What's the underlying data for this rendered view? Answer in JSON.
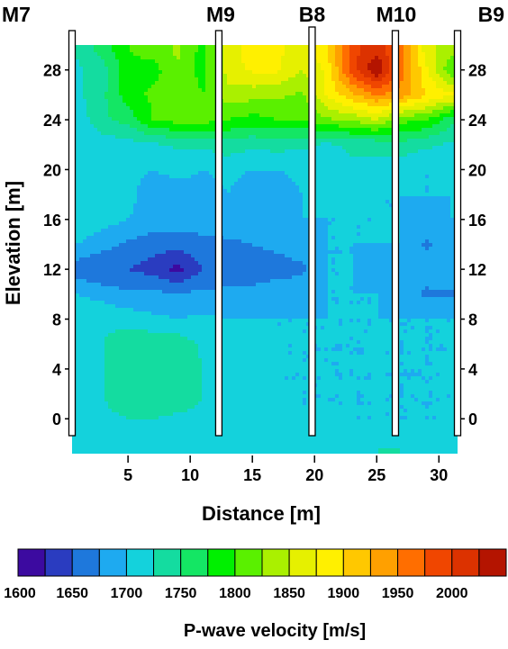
{
  "chart_data": {
    "type": "heatmap",
    "xlabel": "Distance [m]",
    "ylabel": "Elevation [m]",
    "xlim": [
      0.5,
      31.5
    ],
    "ylim": [
      -2.8,
      30
    ],
    "x_ticks": [
      5,
      10,
      15,
      20,
      25,
      30
    ],
    "y_ticks": [
      0,
      4,
      8,
      12,
      16,
      20,
      24,
      28
    ],
    "boreholes": [
      {
        "name": "M7",
        "x": 0.5
      },
      {
        "name": "M9",
        "x": 12.3
      },
      {
        "name": "B8",
        "x": 19.8
      },
      {
        "name": "M10",
        "x": 26.5
      },
      {
        "name": "B9",
        "x": 31.5
      }
    ],
    "colorbar": {
      "label": "P-wave velocity [m/s]",
      "tick_labels": [
        "1600",
        "1650",
        "1700",
        "1750",
        "1800",
        "1850",
        "1900",
        "1950",
        "2000"
      ],
      "levels": [
        1600,
        1625,
        1650,
        1675,
        1700,
        1725,
        1750,
        1775,
        1800,
        1825,
        1850,
        1875,
        1900,
        1925,
        1950,
        1975,
        2000,
        2025,
        2050
      ],
      "colors": [
        "#3c0aa0",
        "#2a3cc0",
        "#1e78dc",
        "#1eaaf0",
        "#14d2dc",
        "#14dca0",
        "#14e664",
        "#00f000",
        "#5af000",
        "#aaf000",
        "#e6f000",
        "#fff000",
        "#ffc800",
        "#ffa000",
        "#ff6e00",
        "#f04600",
        "#dc3200",
        "#b41400"
      ]
    },
    "x": [
      1,
      3,
      5,
      7,
      9,
      11,
      13,
      15,
      17,
      19,
      21,
      23,
      25,
      27,
      29,
      31
    ],
    "y": [
      29.5,
      28,
      26,
      24,
      22,
      20,
      18,
      16,
      14,
      12,
      10,
      8,
      6,
      4,
      2,
      0,
      -2.5
    ],
    "values": [
      [
        1730,
        1760,
        1800,
        1810,
        1830,
        1790,
        1860,
        1890,
        1880,
        1860,
        1900,
        1990,
        2020,
        1960,
        1860,
        1830
      ],
      [
        1720,
        1740,
        1790,
        1790,
        1820,
        1790,
        1860,
        1880,
        1880,
        1850,
        1880,
        1990,
        2050,
        1960,
        1880,
        1800
      ],
      [
        1720,
        1745,
        1790,
        1805,
        1825,
        1800,
        1840,
        1835,
        1830,
        1820,
        1880,
        1920,
        1950,
        1940,
        1900,
        1880
      ],
      [
        1710,
        1745,
        1760,
        1800,
        1810,
        1810,
        1800,
        1790,
        1800,
        1800,
        1820,
        1830,
        1850,
        1810,
        1800,
        1760
      ],
      [
        1700,
        1710,
        1715,
        1720,
        1730,
        1730,
        1740,
        1730,
        1735,
        1730,
        1720,
        1730,
        1730,
        1740,
        1730,
        1720
      ],
      [
        1720,
        1720,
        1710,
        1700,
        1710,
        1700,
        1705,
        1700,
        1700,
        1705,
        1710,
        1720,
        1720,
        1710,
        1700,
        1700
      ],
      [
        1720,
        1725,
        1710,
        1680,
        1685,
        1690,
        1700,
        1690,
        1690,
        1700,
        1705,
        1710,
        1700,
        1700,
        1700,
        1700
      ],
      [
        1715,
        1710,
        1700,
        1690,
        1690,
        1690,
        1690,
        1695,
        1700,
        1700,
        1700,
        1700,
        1700,
        1700,
        1690,
        1700
      ],
      [
        1700,
        1685,
        1670,
        1660,
        1660,
        1665,
        1670,
        1675,
        1680,
        1690,
        1700,
        1700,
        1700,
        1700,
        1670,
        1690
      ],
      [
        1660,
        1650,
        1650,
        1640,
        1615,
        1650,
        1665,
        1665,
        1665,
        1670,
        1700,
        1700,
        1690,
        1690,
        1690,
        1700
      ],
      [
        1700,
        1690,
        1680,
        1680,
        1680,
        1680,
        1680,
        1680,
        1690,
        1690,
        1700,
        1700,
        1700,
        1690,
        1670,
        1670
      ],
      [
        1720,
        1720,
        1715,
        1705,
        1700,
        1705,
        1700,
        1700,
        1700,
        1700,
        1700,
        1700,
        1700,
        1700,
        1700,
        1700
      ],
      [
        1710,
        1725,
        1740,
        1745,
        1740,
        1720,
        1710,
        1705,
        1700,
        1700,
        1700,
        1700,
        1700,
        1700,
        1700,
        1700
      ],
      [
        1710,
        1725,
        1745,
        1750,
        1745,
        1725,
        1710,
        1705,
        1700,
        1700,
        1700,
        1700,
        1700,
        1700,
        1700,
        1700
      ],
      [
        1710,
        1725,
        1740,
        1745,
        1740,
        1725,
        1710,
        1700,
        1700,
        1700,
        1700,
        1700,
        1700,
        1700,
        1700,
        1700
      ],
      [
        1720,
        1720,
        1725,
        1725,
        1720,
        1720,
        1700,
        1710,
        1720,
        1700,
        1700,
        1700,
        1700,
        1700,
        1700,
        1700
      ],
      [
        1720,
        1720,
        1720,
        1720,
        1720,
        1720,
        1720,
        1720,
        1720,
        1720,
        1710,
        1720,
        1725,
        1725,
        1720,
        1720
      ]
    ]
  }
}
